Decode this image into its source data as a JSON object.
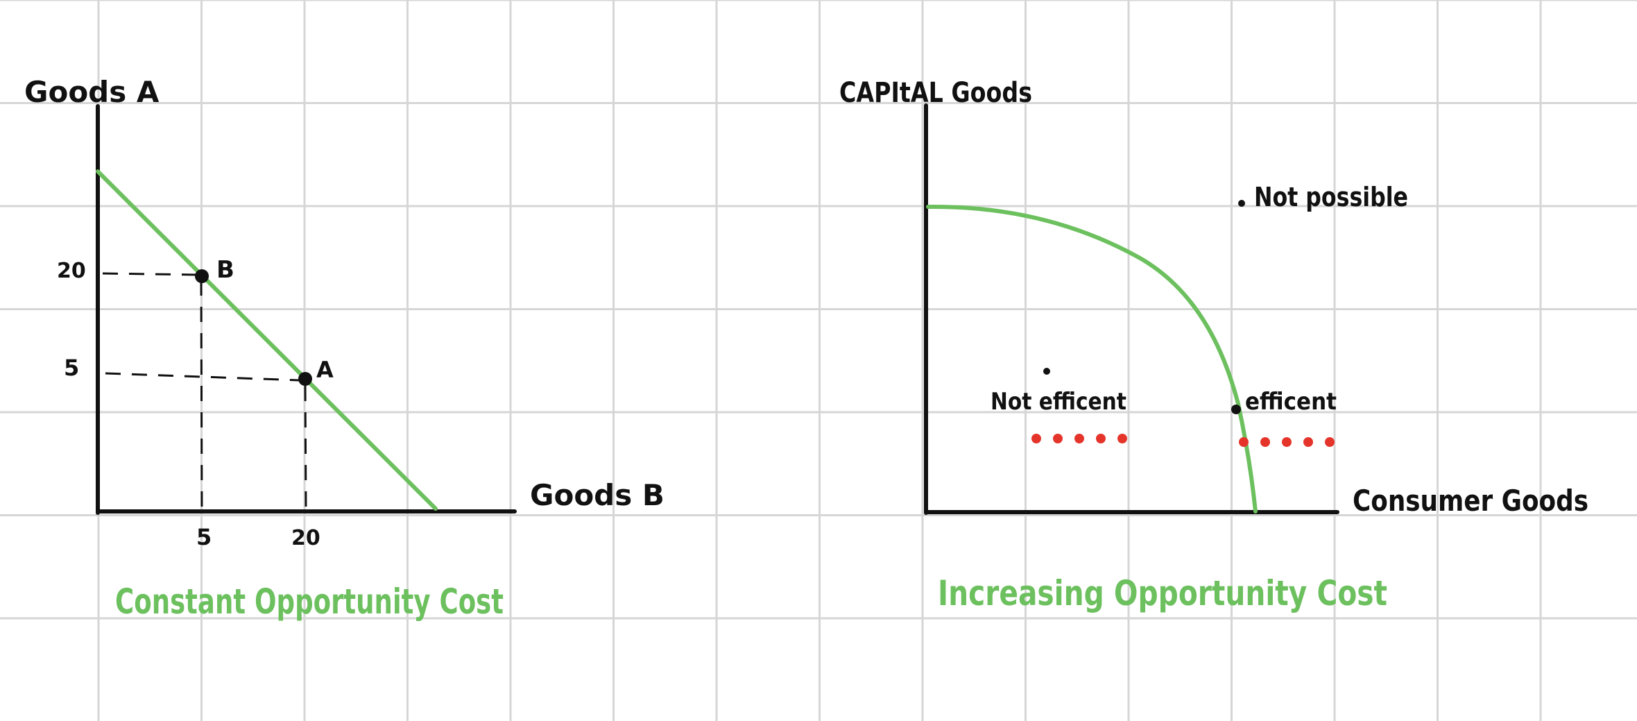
{
  "colors": {
    "grid": "#d6d6d6",
    "axis": "#111111",
    "curve": "#6cc05e",
    "title": "#6cc05e",
    "dots": "#e5352b",
    "point": "#111111"
  },
  "left_diagram": {
    "y_axis_label": "Goods A",
    "x_axis_label": "Goods B",
    "y_tick_20": "20",
    "y_tick_5": "5",
    "x_tick_5": "5",
    "x_tick_20": "20",
    "point_b_label": "B",
    "point_a_label": "A",
    "title": "Constant Opportunity Cost"
  },
  "right_diagram": {
    "y_axis_label": "CAPItAL Goods",
    "x_axis_label": "Consumer Goods",
    "not_possible_label": "Not possible",
    "not_efficient_label": "Not efficent",
    "efficient_label": "efficent",
    "title": "Increasing Opportunity Cost"
  }
}
